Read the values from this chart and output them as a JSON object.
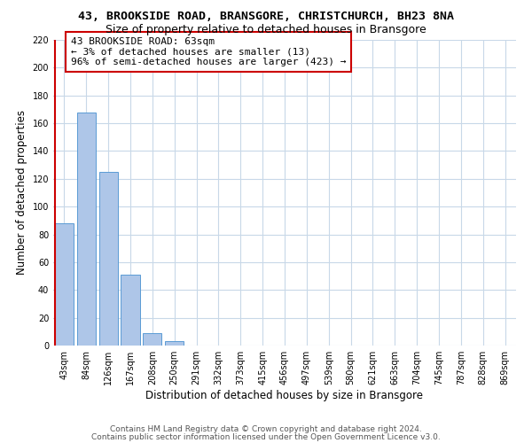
{
  "title": "43, BROOKSIDE ROAD, BRANSGORE, CHRISTCHURCH, BH23 8NA",
  "subtitle": "Size of property relative to detached houses in Bransgore",
  "xlabel": "Distribution of detached houses by size in Bransgore",
  "ylabel": "Number of detached properties",
  "bar_labels": [
    "43sqm",
    "84sqm",
    "126sqm",
    "167sqm",
    "208sqm",
    "250sqm",
    "291sqm",
    "332sqm",
    "373sqm",
    "415sqm",
    "456sqm",
    "497sqm",
    "539sqm",
    "580sqm",
    "621sqm",
    "663sqm",
    "704sqm",
    "745sqm",
    "787sqm",
    "828sqm",
    "869sqm"
  ],
  "bar_values": [
    88,
    168,
    125,
    51,
    9,
    3,
    0,
    0,
    0,
    0,
    0,
    0,
    0,
    0,
    0,
    0,
    0,
    0,
    0,
    0,
    0
  ],
  "bar_color": "#aec6e8",
  "bar_edge_color": "#5b9bd5",
  "highlight_line_color": "#cc0000",
  "annotation_text": "43 BROOKSIDE ROAD: 63sqm\n← 3% of detached houses are smaller (13)\n96% of semi-detached houses are larger (423) →",
  "annotation_box_color": "#ffffff",
  "annotation_box_edge_color": "#cc0000",
  "ylim": [
    0,
    220
  ],
  "yticks": [
    0,
    20,
    40,
    60,
    80,
    100,
    120,
    140,
    160,
    180,
    200,
    220
  ],
  "footer_line1": "Contains HM Land Registry data © Crown copyright and database right 2024.",
  "footer_line2": "Contains public sector information licensed under the Open Government Licence v3.0.",
  "bg_color": "#ffffff",
  "grid_color": "#c8d8e8",
  "title_fontsize": 9.5,
  "subtitle_fontsize": 9,
  "axis_label_fontsize": 8.5,
  "tick_fontsize": 7,
  "annotation_fontsize": 8,
  "footer_fontsize": 6.5
}
